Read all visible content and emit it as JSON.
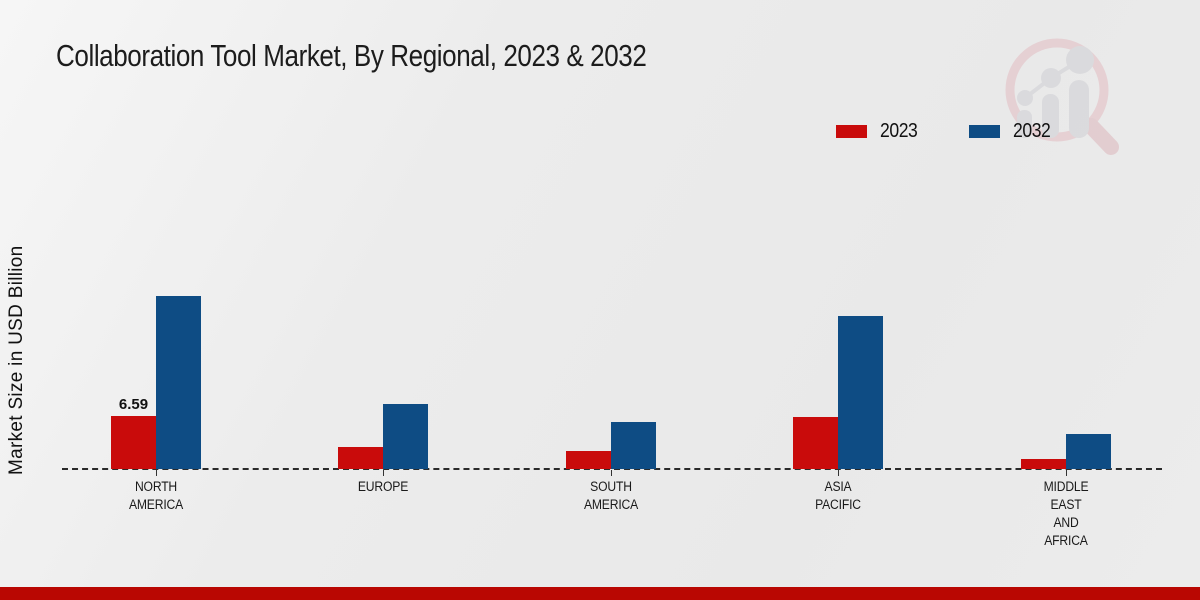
{
  "title": "Collaboration Tool Market, By Regional, 2023 & 2032",
  "y_axis_label": "Market Size in USD Billion",
  "legend": {
    "items": [
      {
        "label": "2023",
        "color": "#c90b0b"
      },
      {
        "label": "2032",
        "color": "#0e4c84"
      }
    ]
  },
  "colors": {
    "series_2023": "#c90b0b",
    "series_2032": "#0e4c84",
    "footer_accent": "#b90702",
    "background": "#ececec",
    "baseline": "#2a2a2a",
    "watermark_pink": "#e3bcc2",
    "watermark_gray": "#cfcfd4"
  },
  "icons": {
    "watermark": "magnifier-bar-chart-logo-icon"
  },
  "chart_data": {
    "type": "bar",
    "title": "Collaboration Tool Market, By Regional, 2023 & 2032",
    "ylabel": "Market Size in USD Billion",
    "categories": [
      "NORTH AMERICA",
      "EUROPE",
      "SOUTH AMERICA",
      "ASIA PACIFIC",
      "MIDDLE EAST AND AFRICA"
    ],
    "category_label_lines": [
      [
        "NORTH",
        "AMERICA"
      ],
      [
        "EUROPE"
      ],
      [
        "SOUTH",
        "AMERICA"
      ],
      [
        "ASIA",
        "PACIFIC"
      ],
      [
        "MIDDLE",
        "EAST",
        "AND",
        "AFRICA"
      ]
    ],
    "series": [
      {
        "name": "2023",
        "color": "#c90b0b",
        "values": [
          6.59,
          2.7,
          2.2,
          6.5,
          1.3
        ]
      },
      {
        "name": "2032",
        "color": "#0e4c84",
        "values": [
          21.5,
          8.1,
          5.9,
          19.0,
          4.4
        ]
      }
    ],
    "data_labels": [
      {
        "series_index": 0,
        "category_index": 0,
        "text": "6.59"
      }
    ],
    "ylim": [
      0,
      24
    ],
    "grid": false,
    "legend_position": "top-right",
    "baseline_style": "dashed",
    "units": "USD Billion"
  }
}
